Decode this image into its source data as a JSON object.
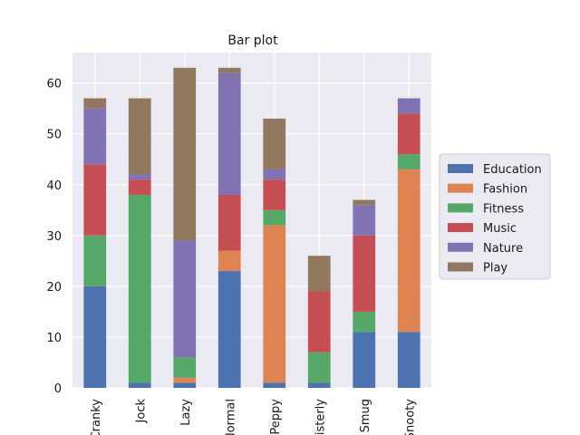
{
  "chart_data": {
    "type": "bar",
    "stacked": true,
    "title": "Bar plot",
    "xlabel": "",
    "ylabel": "",
    "ylim": [
      0,
      66
    ],
    "yticks": [
      0,
      10,
      20,
      30,
      40,
      50,
      60
    ],
    "grid": true,
    "legend_position": "center-right",
    "categories": [
      "Cranky",
      "Jock",
      "Lazy",
      "Normal",
      "Peppy",
      "Sisterly",
      "Smug",
      "Snooty"
    ],
    "series": [
      {
        "name": "Education",
        "color": "#4c72b0",
        "values": [
          20,
          1,
          1,
          23,
          1,
          1,
          11,
          11
        ]
      },
      {
        "name": "Fashion",
        "color": "#dd8452",
        "values": [
          0,
          0,
          1,
          4,
          31,
          0,
          0,
          32
        ]
      },
      {
        "name": "Fitness",
        "color": "#55a868",
        "values": [
          10,
          37,
          4,
          0,
          3,
          6,
          4,
          3
        ]
      },
      {
        "name": "Music",
        "color": "#c44e52",
        "values": [
          14,
          3,
          0,
          11,
          6,
          12,
          15,
          8
        ]
      },
      {
        "name": "Nature",
        "color": "#8172b3",
        "values": [
          11,
          1,
          23,
          24,
          2,
          0,
          6,
          3
        ]
      },
      {
        "name": "Play",
        "color": "#937860",
        "values": [
          2,
          15,
          34,
          1,
          10,
          7,
          1,
          0
        ]
      }
    ]
  }
}
